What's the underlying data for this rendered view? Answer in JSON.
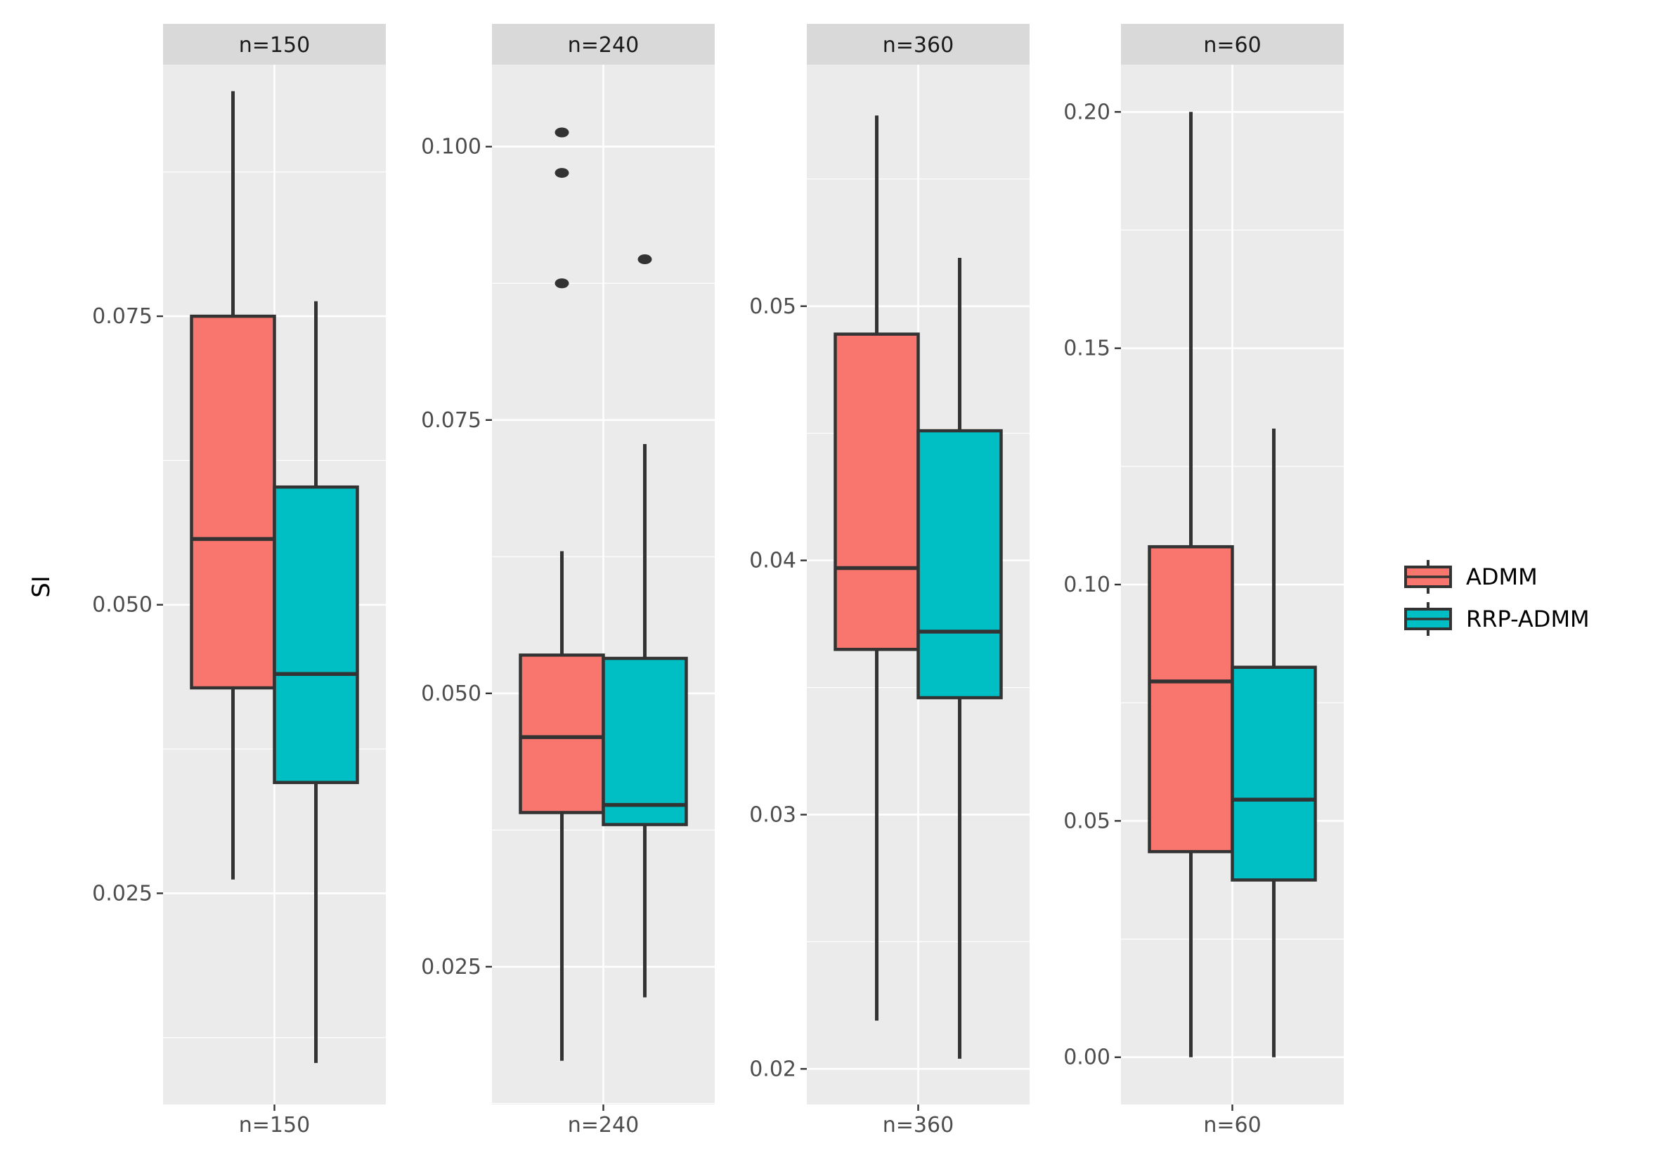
{
  "chart_data": {
    "type": "boxplot",
    "ylabel": "SI",
    "legend_position": "right",
    "series": [
      {
        "name": "ADMM",
        "color": "#F8766D"
      },
      {
        "name": "RRP-ADMM",
        "color": "#00BFC4"
      }
    ],
    "panels": [
      {
        "strip": "n=150",
        "category": "n=150",
        "ylim": [
          0.0067,
          0.0968
        ],
        "yticks": [
          0.025,
          0.05,
          0.075
        ],
        "ytick_labels": [
          "0.025",
          "0.050",
          "0.075"
        ],
        "boxes": [
          {
            "series": "ADMM",
            "lower_whisker": 0.0262,
            "q1": 0.0428,
            "median": 0.0557,
            "q3": 0.075,
            "upper_whisker": 0.0945,
            "outliers": []
          },
          {
            "series": "RRP-ADMM",
            "lower_whisker": 0.0103,
            "q1": 0.0346,
            "median": 0.044,
            "q3": 0.0602,
            "upper_whisker": 0.0763,
            "outliers": []
          }
        ]
      },
      {
        "strip": "n=240",
        "category": "n=240",
        "ylim": [
          0.0124,
          0.1075
        ],
        "yticks": [
          0.025,
          0.05,
          0.075,
          0.1
        ],
        "ytick_labels": [
          "0.025",
          "0.050",
          "0.075",
          "0.100"
        ],
        "boxes": [
          {
            "series": "ADMM",
            "lower_whisker": 0.0164,
            "q1": 0.0391,
            "median": 0.046,
            "q3": 0.0535,
            "upper_whisker": 0.063,
            "outliers": [
              0.1013,
              0.0976,
              0.0875
            ]
          },
          {
            "series": "RRP-ADMM",
            "lower_whisker": 0.0222,
            "q1": 0.038,
            "median": 0.0398,
            "q3": 0.0532,
            "upper_whisker": 0.0728,
            "outliers": [
              0.0897
            ]
          }
        ]
      },
      {
        "strip": "n=360",
        "category": "n=360",
        "ylim": [
          0.0186,
          0.0595
        ],
        "yticks": [
          0.02,
          0.03,
          0.04,
          0.05
        ],
        "ytick_labels": [
          "0.02",
          "0.03",
          "0.04",
          "0.05"
        ],
        "boxes": [
          {
            "series": "ADMM",
            "lower_whisker": 0.0219,
            "q1": 0.0365,
            "median": 0.0397,
            "q3": 0.0489,
            "upper_whisker": 0.0575,
            "outliers": []
          },
          {
            "series": "RRP-ADMM",
            "lower_whisker": 0.0204,
            "q1": 0.0346,
            "median": 0.0372,
            "q3": 0.0451,
            "upper_whisker": 0.0519,
            "outliers": []
          }
        ]
      },
      {
        "strip": "n=60",
        "category": "n=60",
        "ylim": [
          -0.01,
          0.21
        ],
        "yticks": [
          0.0,
          0.05,
          0.1,
          0.15,
          0.2
        ],
        "ytick_labels": [
          "0.00",
          "0.05",
          "0.10",
          "0.15",
          "0.20"
        ],
        "boxes": [
          {
            "series": "ADMM",
            "lower_whisker": 0.0,
            "q1": 0.0435,
            "median": 0.0795,
            "q3": 0.108,
            "upper_whisker": 0.2,
            "outliers": []
          },
          {
            "series": "RRP-ADMM",
            "lower_whisker": 0.0,
            "q1": 0.0375,
            "median": 0.0545,
            "q3": 0.0825,
            "upper_whisker": 0.133,
            "outliers": []
          }
        ]
      }
    ]
  }
}
